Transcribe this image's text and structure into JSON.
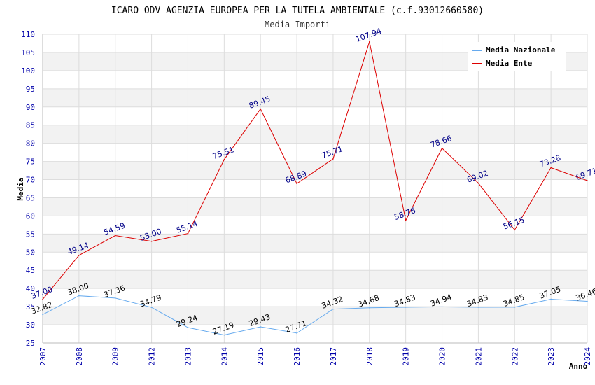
{
  "chart_data": {
    "type": "line",
    "title": "ICARO ODV AGENZIA EUROPEA PER LA TUTELA AMBIENTALE (c.f.93012660580)",
    "subtitle": "Media Importi",
    "xlabel": "Anno",
    "ylabel": "Media",
    "ylim": [
      25,
      110
    ],
    "ytick_step": 5,
    "grid": true,
    "legend_position": "top-right",
    "categories": [
      "2007",
      "2008",
      "2009",
      "2012",
      "2013",
      "2014",
      "2015",
      "2016",
      "2017",
      "2018",
      "2019",
      "2020",
      "2021",
      "2022",
      "2023",
      "2024"
    ],
    "series": [
      {
        "name": "Media Nazionale",
        "color": "#66aaee",
        "label_color": "#000000",
        "values": [
          32.82,
          38.0,
          37.36,
          34.79,
          29.24,
          27.19,
          29.43,
          27.71,
          34.32,
          34.68,
          34.83,
          34.94,
          34.83,
          34.85,
          37.05,
          36.46
        ]
      },
      {
        "name": "Media Ente",
        "color": "#dd0000",
        "label_color": "#000088",
        "values": [
          37.0,
          49.14,
          54.59,
          53.0,
          55.14,
          75.51,
          89.45,
          68.89,
          75.71,
          107.94,
          58.76,
          78.66,
          69.02,
          56.15,
          73.28,
          69.71
        ]
      }
    ]
  }
}
